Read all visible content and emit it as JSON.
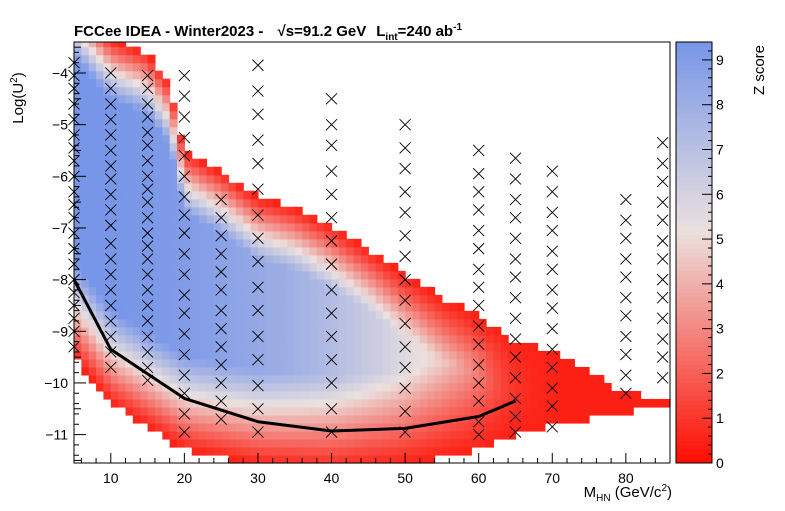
{
  "chart_data": {
    "type": "heatmap",
    "title": {
      "prefix": "FCCee IDEA - Winter2023 - ",
      "sqrt_symbol": "√",
      "energy": "s=91.2 GeV",
      "lumi_L": "L",
      "lumi_sub": "int",
      "lumi_value": "=240 ab",
      "lumi_sup": "-1"
    },
    "xlabel": {
      "main": "M",
      "sub": "HN",
      "rest": " (GeV/c",
      "sup": "2",
      "end": ")"
    },
    "ylabel": {
      "main": "Log(U",
      "sup": "2",
      "end": ")"
    },
    "zlabel": "Z score",
    "xlim": [
      5,
      86
    ],
    "ylim": [
      -11.55,
      -3.4
    ],
    "zlim": [
      0,
      9.4
    ],
    "x_ticks": [
      "10",
      "20",
      "30",
      "40",
      "50",
      "60",
      "70",
      "80"
    ],
    "x_tick_values": [
      10,
      20,
      30,
      40,
      50,
      60,
      70,
      80
    ],
    "y_ticks": [
      "−4",
      "−5",
      "−6",
      "−7",
      "−8",
      "−9",
      "−10",
      "−11"
    ],
    "y_tick_values": [
      -4,
      -5,
      -6,
      -7,
      -8,
      -9,
      -10,
      -11
    ],
    "z_ticks": [
      "0",
      "1",
      "2",
      "3",
      "4",
      "5",
      "6",
      "7",
      "8",
      "9"
    ],
    "z_tick_values": [
      0,
      1,
      2,
      3,
      4,
      5,
      6,
      7,
      8,
      9
    ],
    "colors": {
      "low": "#ff0d00",
      "mid": "#ebe0de",
      "high": "#7896e8"
    },
    "sensitivity_curve": {
      "x": [
        5,
        10,
        20,
        30,
        40,
        50,
        60,
        65
      ],
      "y": [
        -8.0,
        -9.35,
        -10.3,
        -10.75,
        -10.93,
        -10.88,
        -10.65,
        -10.35
      ]
    },
    "markers": [
      {
        "x": 5,
        "y": [
          -3.8,
          -4.05,
          -4.3,
          -4.6,
          -4.9,
          -5.2,
          -5.45,
          -5.7,
          -6.0,
          -6.3,
          -6.55,
          -6.8,
          -7.1,
          -7.4,
          -7.7,
          -8.0,
          -8.25,
          -8.5,
          -8.75,
          -9.0,
          -9.3
        ]
      },
      {
        "x": 10,
        "y": [
          -4.0,
          -4.3,
          -4.6,
          -4.9,
          -5.2,
          -5.5,
          -5.8,
          -6.05,
          -6.35,
          -6.65,
          -6.95,
          -7.3,
          -7.6,
          -7.9,
          -8.2,
          -8.5,
          -8.8,
          -9.1,
          -9.4,
          -9.7
        ]
      },
      {
        "x": 15,
        "y": [
          -4.05,
          -4.3,
          -4.6,
          -4.85,
          -5.15,
          -5.4,
          -5.7,
          -6.0,
          -6.25,
          -6.5,
          -6.8,
          -7.1,
          -7.35,
          -7.6,
          -7.9,
          -8.2,
          -8.5,
          -8.8,
          -9.1,
          -9.4,
          -9.7,
          -9.95
        ]
      },
      {
        "x": 20,
        "y": [
          -4.05,
          -4.45,
          -4.85,
          -5.25,
          -5.6,
          -6.0,
          -6.4,
          -6.75,
          -7.1,
          -7.5,
          -7.9,
          -8.3,
          -8.65,
          -9.05,
          -9.45,
          -9.85,
          -10.2,
          -10.6,
          -10.95
        ]
      },
      {
        "x": 25,
        "y": [
          -6.45,
          -6.8,
          -7.15,
          -7.5,
          -7.85,
          -8.2,
          -8.6,
          -8.95,
          -9.3,
          -9.65,
          -10.0,
          -10.35,
          -10.7
        ]
      },
      {
        "x": 30,
        "y": [
          -3.85,
          -4.35,
          -4.8,
          -5.3,
          -5.75,
          -6.25,
          -6.75,
          -7.2,
          -7.65,
          -8.15,
          -8.6,
          -9.1,
          -9.55,
          -10.05,
          -10.5,
          -10.95
        ]
      },
      {
        "x": 40,
        "y": [
          -4.5,
          -5.0,
          -5.4,
          -5.9,
          -6.35,
          -6.8,
          -7.25,
          -7.7,
          -8.2,
          -8.65,
          -9.1,
          -9.55,
          -10.0,
          -10.5,
          -10.95
        ]
      },
      {
        "x": 50,
        "y": [
          -5.0,
          -5.45,
          -5.85,
          -6.3,
          -6.7,
          -7.15,
          -7.55,
          -8.0,
          -8.4,
          -8.85,
          -9.3,
          -9.7,
          -10.1,
          -10.55,
          -10.95
        ]
      },
      {
        "x": 60,
        "y": [
          -5.5,
          -5.95,
          -6.3,
          -6.65,
          -7.05,
          -7.4,
          -7.8,
          -8.15,
          -8.5,
          -8.9,
          -9.25,
          -9.65,
          -10.0,
          -10.35,
          -10.75,
          -11.0
        ]
      },
      {
        "x": 65,
        "y": [
          -5.65,
          -6.05,
          -6.45,
          -6.8,
          -7.2,
          -7.6,
          -7.95,
          -8.35,
          -8.75,
          -9.15,
          -9.5,
          -9.9,
          -10.3,
          -10.65,
          -10.95
        ]
      },
      {
        "x": 70,
        "y": [
          -5.9,
          -6.3,
          -6.7,
          -7.05,
          -7.45,
          -7.8,
          -8.2,
          -8.55,
          -8.95,
          -9.35,
          -9.7,
          -10.1,
          -10.45,
          -10.85
        ]
      },
      {
        "x": 80,
        "y": [
          -6.45,
          -6.85,
          -7.2,
          -7.6,
          -7.95,
          -8.35,
          -8.7,
          -9.1,
          -9.45,
          -9.85,
          -10.2
        ]
      },
      {
        "x": 85,
        "y": [
          -5.35,
          -5.75,
          -6.1,
          -6.5,
          -6.85,
          -7.25,
          -7.6,
          -8.0,
          -8.35,
          -8.75,
          -9.15,
          -9.5,
          -9.9
        ]
      }
    ]
  }
}
